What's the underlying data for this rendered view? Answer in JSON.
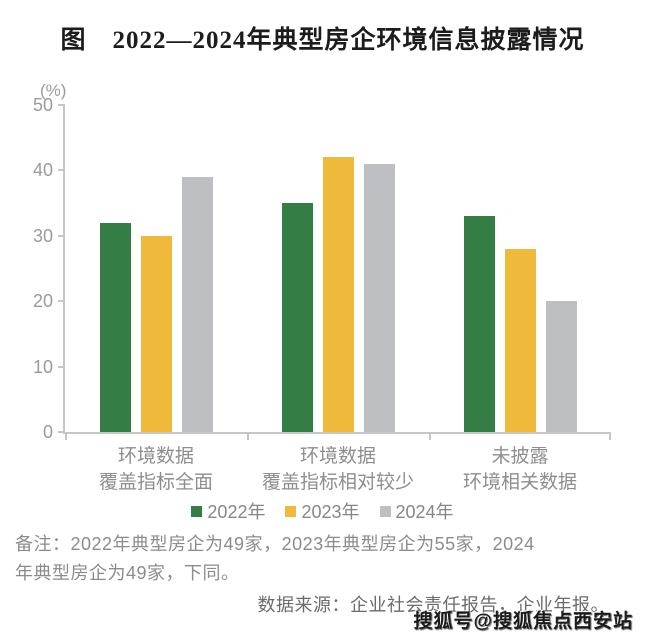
{
  "title": "图　2022—2024年典型房企环境信息披露情况",
  "chart_data": {
    "type": "bar",
    "unit_label": "(%)",
    "categories": [
      {
        "line1": "环境数据",
        "line2": "覆盖指标全面"
      },
      {
        "line1": "环境数据",
        "line2": "覆盖指标相对较少"
      },
      {
        "line1": "未披露",
        "line2": "环境相关数据"
      }
    ],
    "series": [
      {
        "name": "2022年",
        "color": "#347e45",
        "values": [
          32,
          35,
          33
        ]
      },
      {
        "name": "2023年",
        "color": "#efba3c",
        "values": [
          30,
          42,
          28
        ]
      },
      {
        "name": "2024年",
        "color": "#bebfc3",
        "values": [
          39,
          41,
          20
        ]
      }
    ],
    "yticks": [
      0,
      10,
      20,
      30,
      40,
      50
    ],
    "ylim": [
      0,
      50
    ],
    "grid": false,
    "legend_position": "bottom"
  },
  "note": {
    "line1": "备注：2022年典型房企为49家，2023年典型房企为55家，2024",
    "line2": "年典型房企为49家，下同。"
  },
  "source": "数据来源：企业社会责任报告，企业年报。",
  "watermark": "搜狐号@搜狐焦点西安站",
  "colors": {
    "axis": "#c6c6c6",
    "tick_label": "#9b9b9b",
    "category_label": "#8e8e8e",
    "note_text": "#8c8c8c",
    "source_text": "#6b6b6b"
  }
}
